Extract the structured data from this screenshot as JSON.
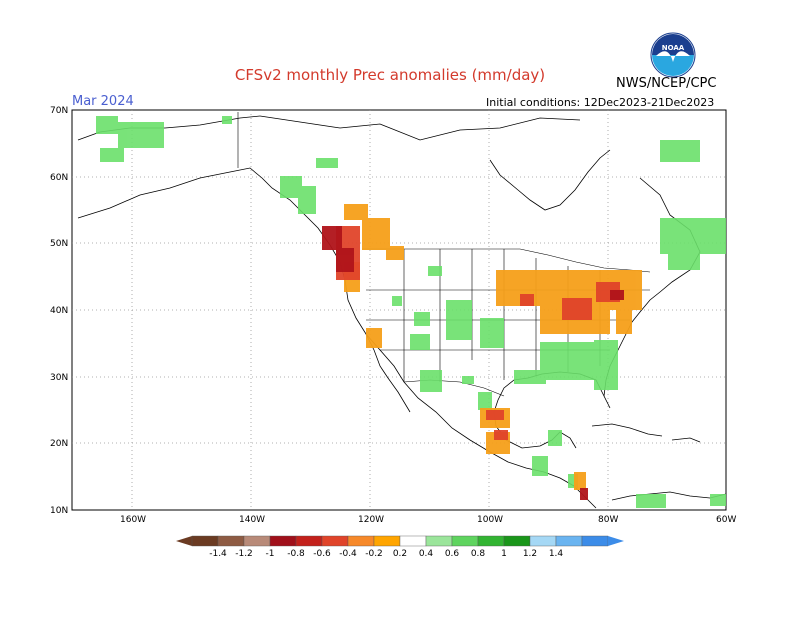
{
  "header": {
    "title": "CFSv2 monthly Prec anomalies (mm/day)",
    "month": "Mar 2024",
    "initial_conditions": "Initial conditions: 12Dec2023-21Dec2023",
    "agency": "NWS/NCEP/CPC",
    "logo_text": "NOAA"
  },
  "axes": {
    "lat_labels": [
      "70N",
      "60N",
      "50N",
      "40N",
      "30N",
      "20N",
      "10N"
    ],
    "lon_labels": [
      "160W",
      "140W",
      "120W",
      "100W",
      "80W",
      "60W"
    ]
  },
  "colorbar": {
    "labels": [
      "-1.4",
      "-1.2",
      "-1",
      "-0.8",
      "-0.6",
      "-0.4",
      "-0.2",
      "0.2",
      "0.4",
      "0.6",
      "0.8",
      "1",
      "1.2",
      "1.4"
    ],
    "colors": [
      "#6b3b22",
      "#8e5b43",
      "#b88a78",
      "#a0101a",
      "#c3211b",
      "#e0442a",
      "#f6892a",
      "#ffa500",
      "#ffffff",
      "#9be59b",
      "#5fd45f",
      "#32b432",
      "#1a961a",
      "#a5d8f5",
      "#6ab4f0",
      "#3c8ce8"
    ]
  },
  "map": {
    "extent": {
      "lon_min": -170,
      "lon_max": -60,
      "lat_min": 10,
      "lat_max": 70
    },
    "anomaly_regions": [
      {
        "color": "#6be06b",
        "level": "0.4"
      },
      {
        "color": "#f6a01a",
        "level": "-0.2"
      },
      {
        "color": "#e0442a",
        "level": "-0.4"
      },
      {
        "color": "#b0141a",
        "level": "-0.8"
      }
    ]
  }
}
